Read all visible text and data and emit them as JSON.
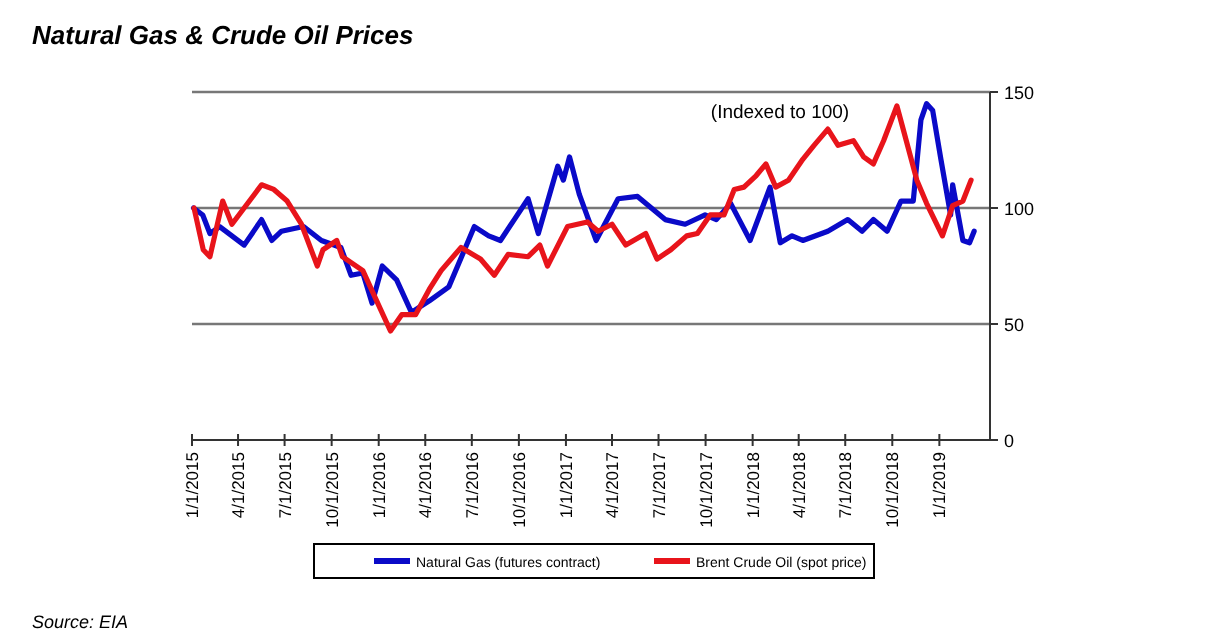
{
  "chart_data": {
    "type": "line",
    "title": "Natural Gas & Crude Oil Prices",
    "annotations": [
      "(Indexed to 100)",
      "Source: EIA"
    ],
    "xlim": [
      "2015-01-01",
      "2019-04-10"
    ],
    "xticks": [
      {
        "value": "2015-01-01",
        "label": "1/1/2015"
      },
      {
        "value": "2015-04-01",
        "label": "4/1/2015"
      },
      {
        "value": "2015-07-01",
        "label": "7/1/2015"
      },
      {
        "value": "2015-10-01",
        "label": "10/1/2015"
      },
      {
        "value": "2016-01-01",
        "label": "1/1/2016"
      },
      {
        "value": "2016-04-01",
        "label": "4/1/2016"
      },
      {
        "value": "2016-07-01",
        "label": "7/1/2016"
      },
      {
        "value": "2016-10-01",
        "label": "10/1/2016"
      },
      {
        "value": "2017-01-01",
        "label": "1/1/2017"
      },
      {
        "value": "2017-04-01",
        "label": "4/1/2017"
      },
      {
        "value": "2017-07-01",
        "label": "7/1/2017"
      },
      {
        "value": "2017-10-01",
        "label": "10/1/2017"
      },
      {
        "value": "2018-01-01",
        "label": "1/1/2018"
      },
      {
        "value": "2018-04-01",
        "label": "4/1/2018"
      },
      {
        "value": "2018-07-01",
        "label": "7/1/2018"
      },
      {
        "value": "2018-10-01",
        "label": "10/1/2018"
      },
      {
        "value": "2019-01-01",
        "label": "1/1/2019"
      }
    ],
    "ylim": [
      0,
      150
    ],
    "yticks": [
      0,
      50,
      100,
      150
    ],
    "grid": "y",
    "legend": "bottom",
    "line_style": "solid",
    "series": [
      {
        "name": "Natural Gas (futures contract)",
        "color": "#0a0ac8",
        "x": [
          "2015-01-04",
          "2015-01-22",
          "2015-02-05",
          "2015-02-24",
          "2015-04-13",
          "2015-05-17",
          "2015-06-06",
          "2015-06-25",
          "2015-08-07",
          "2015-09-11",
          "2015-10-19",
          "2015-11-08",
          "2015-12-01",
          "2015-12-19",
          "2016-01-08",
          "2016-02-05",
          "2016-03-05",
          "2016-04-09",
          "2016-05-17",
          "2016-07-06",
          "2016-08-03",
          "2016-08-26",
          "2016-09-22",
          "2016-10-19",
          "2016-11-08",
          "2016-12-16",
          "2016-12-27",
          "2017-01-08",
          "2017-01-27",
          "2017-03-01",
          "2017-04-13",
          "2017-05-21",
          "2017-07-14",
          "2017-08-22",
          "2017-09-30",
          "2017-10-22",
          "2017-11-19",
          "2017-12-27",
          "2018-02-04",
          "2018-02-24",
          "2018-03-19",
          "2018-04-09",
          "2018-05-28",
          "2018-07-06",
          "2018-08-03",
          "2018-08-25",
          "2018-09-21",
          "2018-10-18",
          "2018-11-11",
          "2018-11-26",
          "2018-12-07",
          "2018-12-19",
          "2019-01-04",
          "2019-01-23",
          "2019-01-27",
          "2019-02-16",
          "2019-03-01",
          "2019-03-10"
        ],
        "values": [
          100,
          97,
          89,
          92,
          84,
          95,
          86,
          90,
          92,
          86,
          83,
          71,
          72,
          59,
          75,
          69,
          55,
          60,
          66,
          92,
          88,
          86,
          95,
          104,
          89,
          118,
          112,
          122,
          106,
          86,
          104,
          105,
          95,
          93,
          97,
          95,
          102,
          86,
          109,
          85,
          88,
          86,
          90,
          95,
          90,
          95,
          90,
          103,
          103,
          138,
          145,
          142,
          121,
          97,
          110,
          86,
          85,
          90
        ]
      },
      {
        "name": "Brent Crude Oil (spot price)",
        "color": "#e8141b",
        "x": [
          "2015-01-05",
          "2015-01-23",
          "2015-02-05",
          "2015-03-02",
          "2015-03-20",
          "2015-05-17",
          "2015-06-10",
          "2015-07-06",
          "2015-08-03",
          "2015-09-03",
          "2015-09-14",
          "2015-10-11",
          "2015-10-22",
          "2015-12-01",
          "2015-12-28",
          "2016-01-24",
          "2016-02-15",
          "2016-03-13",
          "2016-04-09",
          "2016-05-02",
          "2016-06-10",
          "2016-07-18",
          "2016-08-14",
          "2016-09-10",
          "2016-10-19",
          "2016-11-11",
          "2016-11-26",
          "2017-01-04",
          "2017-02-12",
          "2017-03-05",
          "2017-04-01",
          "2017-04-28",
          "2017-06-06",
          "2017-06-28",
          "2017-07-25",
          "2017-08-25",
          "2017-09-15",
          "2017-10-10",
          "2017-11-06",
          "2017-11-26",
          "2017-12-15",
          "2018-01-08",
          "2018-01-27",
          "2018-02-15",
          "2018-03-12",
          "2018-04-09",
          "2018-05-01",
          "2018-05-28",
          "2018-06-17",
          "2018-07-17",
          "2018-08-06",
          "2018-08-25",
          "2018-09-14",
          "2018-10-10",
          "2018-10-21",
          "2018-11-18",
          "2018-12-07",
          "2019-01-07",
          "2019-01-27",
          "2019-02-16",
          "2019-03-04"
        ],
        "values": [
          100,
          82,
          79,
          103,
          93,
          110,
          108,
          103,
          93,
          75,
          82,
          86,
          79,
          73,
          60,
          47,
          54,
          54,
          65,
          73,
          83,
          78,
          71,
          80,
          79,
          84,
          75,
          92,
          94,
          90,
          93,
          84,
          89,
          78,
          82,
          88,
          89,
          97,
          97,
          108,
          109,
          114,
          119,
          109,
          112,
          121,
          127,
          134,
          127,
          129,
          122,
          119,
          129,
          144,
          135,
          112,
          102,
          88,
          101,
          103,
          112
        ]
      }
    ]
  }
}
